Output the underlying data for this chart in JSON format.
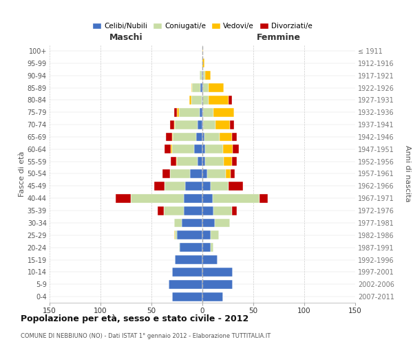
{
  "age_groups": [
    "100+",
    "95-99",
    "90-94",
    "85-89",
    "80-84",
    "75-79",
    "70-74",
    "65-69",
    "60-64",
    "55-59",
    "50-54",
    "45-49",
    "40-44",
    "35-39",
    "30-34",
    "25-29",
    "20-24",
    "15-19",
    "10-14",
    "5-9",
    "0-4"
  ],
  "birth_years": [
    "≤ 1911",
    "1912-1916",
    "1917-1921",
    "1922-1926",
    "1927-1931",
    "1932-1936",
    "1937-1941",
    "1942-1946",
    "1947-1951",
    "1952-1956",
    "1957-1961",
    "1962-1966",
    "1967-1971",
    "1972-1976",
    "1977-1981",
    "1982-1986",
    "1987-1991",
    "1992-1996",
    "1997-2001",
    "2002-2006",
    "2007-2011"
  ],
  "male_celibi": [
    0,
    0,
    1,
    2,
    1,
    3,
    5,
    6,
    8,
    5,
    12,
    17,
    18,
    18,
    20,
    25,
    22,
    27,
    30,
    33,
    30
  ],
  "male_coniugati": [
    0,
    1,
    2,
    8,
    10,
    20,
    22,
    23,
    22,
    20,
    20,
    20,
    52,
    20,
    8,
    2,
    1,
    0,
    0,
    0,
    0
  ],
  "male_vedovi": [
    0,
    0,
    0,
    1,
    2,
    2,
    1,
    1,
    1,
    1,
    0,
    0,
    0,
    0,
    0,
    1,
    0,
    0,
    0,
    0,
    0
  ],
  "male_divorziati": [
    0,
    0,
    0,
    0,
    0,
    3,
    4,
    6,
    6,
    5,
    7,
    10,
    15,
    6,
    0,
    0,
    0,
    0,
    0,
    0,
    0
  ],
  "female_celibi": [
    0,
    0,
    1,
    1,
    0,
    1,
    1,
    2,
    3,
    3,
    5,
    8,
    10,
    11,
    12,
    8,
    8,
    15,
    30,
    30,
    20
  ],
  "female_coniugati": [
    0,
    0,
    2,
    5,
    6,
    10,
    12,
    15,
    17,
    18,
    18,
    18,
    46,
    18,
    15,
    8,
    3,
    0,
    0,
    0,
    0
  ],
  "female_vedovi": [
    1,
    2,
    5,
    15,
    20,
    20,
    14,
    12,
    10,
    8,
    5,
    0,
    0,
    0,
    0,
    0,
    0,
    0,
    0,
    0,
    0
  ],
  "female_divorziati": [
    0,
    0,
    0,
    0,
    3,
    0,
    4,
    5,
    6,
    5,
    4,
    14,
    8,
    5,
    0,
    0,
    0,
    0,
    0,
    0,
    0
  ],
  "color_celibi": "#4472c4",
  "color_coniugati": "#c8dda5",
  "color_vedovi": "#ffc000",
  "color_divorziati": "#c00000",
  "title": "Popolazione per età, sesso e stato civile - 2012",
  "subtitle": "COMUNE DI NEBBIUNO (NO) - Dati ISTAT 1° gennaio 2012 - Elaborazione TUTTITALIA.IT",
  "xlabel_left": "Maschi",
  "xlabel_right": "Femmine",
  "ylabel_left": "Fasce di età",
  "ylabel_right": "Anni di nascita",
  "xlim": 150,
  "background_color": "#ffffff"
}
